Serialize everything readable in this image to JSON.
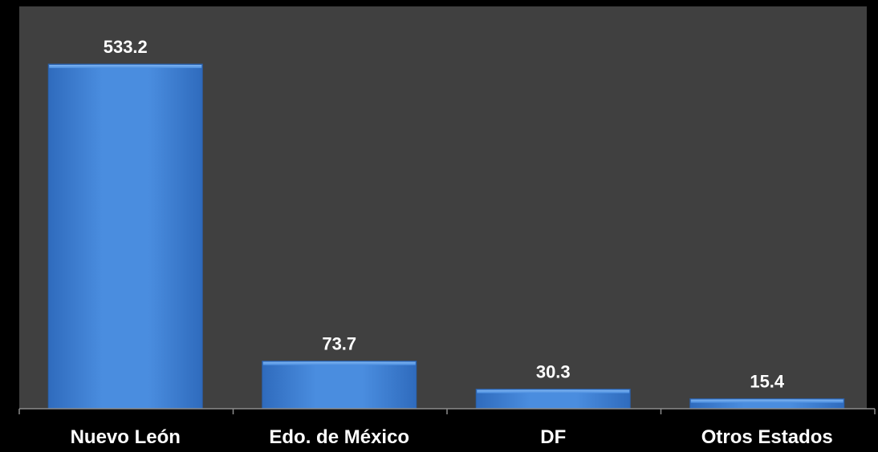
{
  "chart_data": {
    "type": "bar",
    "categories": [
      "Nuevo León",
      "Edo. de México",
      "DF",
      "Otros Estados"
    ],
    "values": [
      533.2,
      73.7,
      30.3,
      15.4
    ],
    "data_labels": [
      "533.2",
      "73.7",
      "30.3",
      "15.4"
    ],
    "title": "",
    "xlabel": "",
    "ylabel": "",
    "ylim": [
      0,
      533.2
    ],
    "grid": false,
    "legend": "none"
  },
  "colors": {
    "page_background": "#000000",
    "plot_background": "#404040",
    "bar_light": "#5a9ae6",
    "bar_mid": "#3f7fd4",
    "bar_dark": "#2a5fa8",
    "axis": "#8c8c8c",
    "text": "#ffffff"
  }
}
